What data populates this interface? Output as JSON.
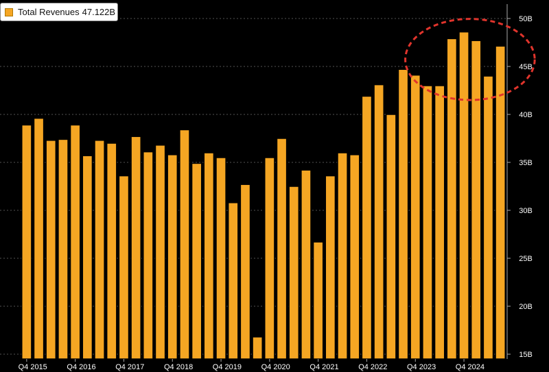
{
  "chart_data": {
    "type": "bar",
    "legend": {
      "label": "Total Revenues",
      "value": "47.122B",
      "placement": "top-left"
    },
    "colors": {
      "bar": "#f5a623",
      "bar_stroke": "#000000",
      "background": "#000000",
      "grid": "#555555",
      "highlight": "#e0342c"
    },
    "x_tick_labels": [
      "Q4 2015",
      "Q4 2016",
      "Q4 2017",
      "Q4 2018",
      "Q4 2019",
      "Q4 2020",
      "Q4 2021",
      "Q4 2022",
      "Q4 2023",
      "Q4 2024"
    ],
    "x_tick_indices": [
      0,
      4,
      8,
      12,
      16,
      20,
      24,
      28,
      32,
      36
    ],
    "y_ticks": [
      15,
      20,
      25,
      30,
      35,
      40,
      45,
      50
    ],
    "y_tick_labels": [
      "15B",
      "20B",
      "25B",
      "30B",
      "35B",
      "40B",
      "45B",
      "50B"
    ],
    "ylim": [
      14.5,
      51.5
    ],
    "y_axis_position": "right",
    "grid": true,
    "annotation": "dashed-ellipse-highlight-recent-quarters",
    "values": [
      38.9,
      39.6,
      37.3,
      37.4,
      38.9,
      35.7,
      37.3,
      37.0,
      33.6,
      37.7,
      36.1,
      36.8,
      35.8,
      38.4,
      34.9,
      36.0,
      35.5,
      30.8,
      32.7,
      16.8,
      35.5,
      37.5,
      32.5,
      34.2,
      26.7,
      33.6,
      36.0,
      35.8,
      41.9,
      43.1,
      40.0,
      44.7,
      44.1,
      43.0,
      43.0,
      47.9,
      48.6,
      47.7,
      44.0,
      47.122
    ]
  }
}
